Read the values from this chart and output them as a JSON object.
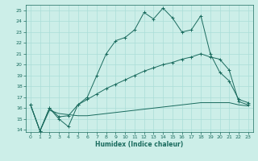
{
  "xlabel": "Humidex (Indice chaleur)",
  "bg_color": "#cceee8",
  "grid_color": "#aaddd8",
  "line_color": "#1a6b5e",
  "xlim": [
    -0.5,
    23.5
  ],
  "ylim": [
    13.8,
    25.5
  ],
  "xticks": [
    0,
    1,
    2,
    3,
    4,
    5,
    6,
    7,
    8,
    9,
    10,
    11,
    12,
    13,
    14,
    15,
    16,
    17,
    18,
    19,
    20,
    21,
    22,
    23
  ],
  "yticks": [
    14,
    15,
    16,
    17,
    18,
    19,
    20,
    21,
    22,
    23,
    24,
    25
  ],
  "curve1_x": [
    0,
    1,
    2,
    3,
    4,
    5,
    6,
    7,
    8,
    9,
    10,
    11,
    12,
    13,
    14,
    15,
    16,
    17,
    18,
    19,
    20,
    21,
    22,
    23
  ],
  "curve1_y": [
    16.3,
    13.9,
    16.0,
    15.0,
    14.3,
    16.3,
    17.0,
    19.0,
    21.0,
    22.2,
    22.5,
    23.2,
    24.8,
    24.2,
    25.2,
    24.3,
    23.0,
    23.2,
    24.5,
    21.0,
    19.3,
    18.5,
    16.8,
    16.5
  ],
  "curve2_x": [
    0,
    1,
    2,
    3,
    4,
    5,
    6,
    7,
    8,
    9,
    10,
    11,
    12,
    13,
    14,
    15,
    16,
    17,
    18,
    19,
    20,
    21,
    22,
    23
  ],
  "curve2_y": [
    16.3,
    13.9,
    16.0,
    15.2,
    15.3,
    16.3,
    16.8,
    17.3,
    17.8,
    18.2,
    18.6,
    19.0,
    19.4,
    19.7,
    20.0,
    20.2,
    20.5,
    20.7,
    21.0,
    20.7,
    20.5,
    19.5,
    16.6,
    16.3
  ],
  "curve3_x": [
    0,
    1,
    2,
    3,
    4,
    5,
    6,
    7,
    8,
    9,
    10,
    11,
    12,
    13,
    14,
    15,
    16,
    17,
    18,
    19,
    20,
    21,
    22,
    23
  ],
  "curve3_y": [
    16.3,
    13.9,
    15.8,
    15.5,
    15.4,
    15.3,
    15.3,
    15.4,
    15.5,
    15.6,
    15.7,
    15.8,
    15.9,
    16.0,
    16.1,
    16.2,
    16.3,
    16.4,
    16.5,
    16.5,
    16.5,
    16.5,
    16.3,
    16.2
  ]
}
